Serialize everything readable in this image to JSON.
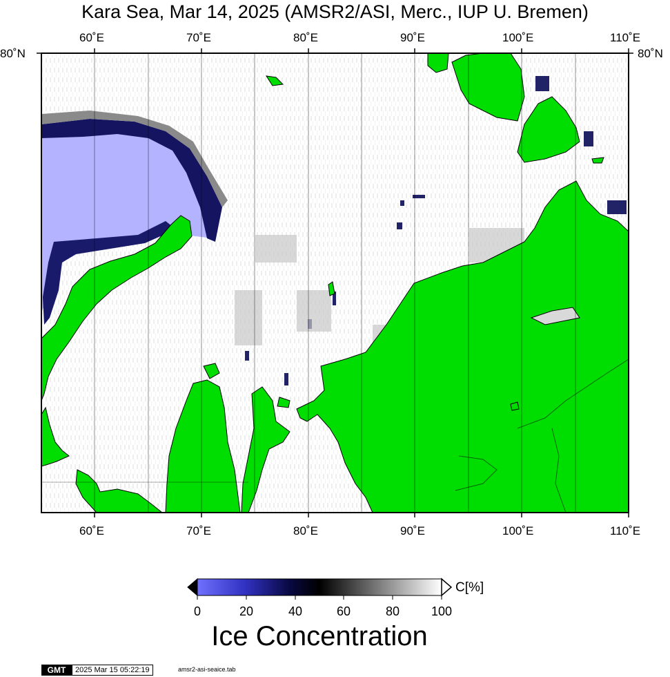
{
  "title": "Kara Sea, Mar 14, 2025 (AMSR2/ASI, Merc., IUP U. Bremen)",
  "map": {
    "projection": "Mercator",
    "lon_range": [
      55,
      110
    ],
    "lat_top": 80,
    "graticule_lon_step": 5,
    "top_lon_labels": [
      "60˚E",
      "70˚E",
      "80˚E",
      "90˚E",
      "100˚E",
      "110˚E"
    ],
    "bottom_lon_labels": [
      "60˚E",
      "70˚E",
      "80˚E",
      "90˚E",
      "100˚E",
      "110˚E"
    ],
    "lat_label_left": "80˚N",
    "lat_label_right": "80˚N",
    "colors": {
      "land": "#00dd00",
      "open_water": "#b3b3ff",
      "ice_full": "#ffffff",
      "ice_mid": "#000000",
      "ice_low": "#1a1a70"
    }
  },
  "colorbar": {
    "unit_label": "C[%]",
    "tick_labels": [
      "0",
      "20",
      "40",
      "60",
      "80",
      "100"
    ],
    "min": 0,
    "max": 100,
    "caption": "Ice Concentration"
  },
  "footer": {
    "logo_text": "GMT",
    "timestamp": "2025 Mar 15 05:22:19",
    "script_name": "amsr2-asi-seaice.tab"
  }
}
